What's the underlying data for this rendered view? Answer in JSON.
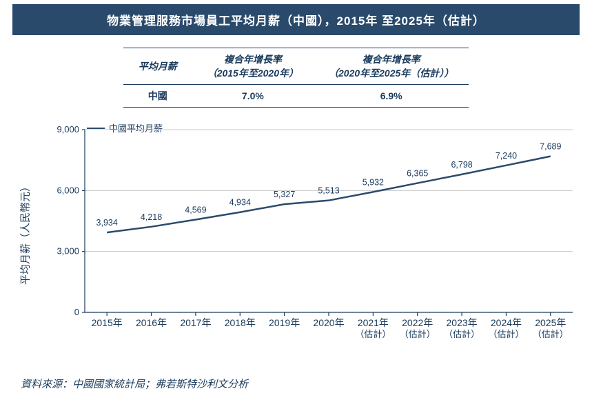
{
  "title": "物業管理服務市場員工平均月薪（中國），2015年 至2025年（估計）",
  "summary": {
    "headers": [
      "平均月薪",
      "複合年增長率\n（2015年至2020年）",
      "複合年增長率\n（2020年至2025年（估計））"
    ],
    "row_label": "中國",
    "cagr1": "7.0%",
    "cagr2": "6.9%"
  },
  "legend_label": "中國平均月薪",
  "ylabel": "平均月薪（人民幣元）",
  "chart": {
    "type": "line",
    "ylim": [
      0,
      9000
    ],
    "ytick_step": 3000,
    "yticks": [
      0,
      3000,
      6000,
      9000
    ],
    "ytick_labels": [
      "0",
      "3,000",
      "6,000",
      "9,000"
    ],
    "categories": [
      "2015年",
      "2016年",
      "2017年",
      "2018年",
      "2019年",
      "2020年",
      "2021年",
      "2022年",
      "2023年",
      "2024年",
      "2025年"
    ],
    "category_sub": [
      "",
      "",
      "",
      "",
      "",
      "",
      "（估計）",
      "（估計）",
      "（估計）",
      "（估計）",
      "（估計）"
    ],
    "values": [
      3934,
      4218,
      4569,
      4934,
      5327,
      5513,
      5932,
      6365,
      6798,
      7240,
      7689
    ],
    "value_labels": [
      "3,934",
      "4,218",
      "4,569",
      "4,934",
      "5,327",
      "5,513",
      "5,932",
      "6,365",
      "6,798",
      "7,240",
      "7,689"
    ],
    "line_color": "#2a4a6c",
    "grid_color": "#c8c8c8",
    "background_color": "#ffffff",
    "line_width": 2.5
  },
  "source": "資料來源：中國國家統計局；弗若斯特沙利文分析"
}
